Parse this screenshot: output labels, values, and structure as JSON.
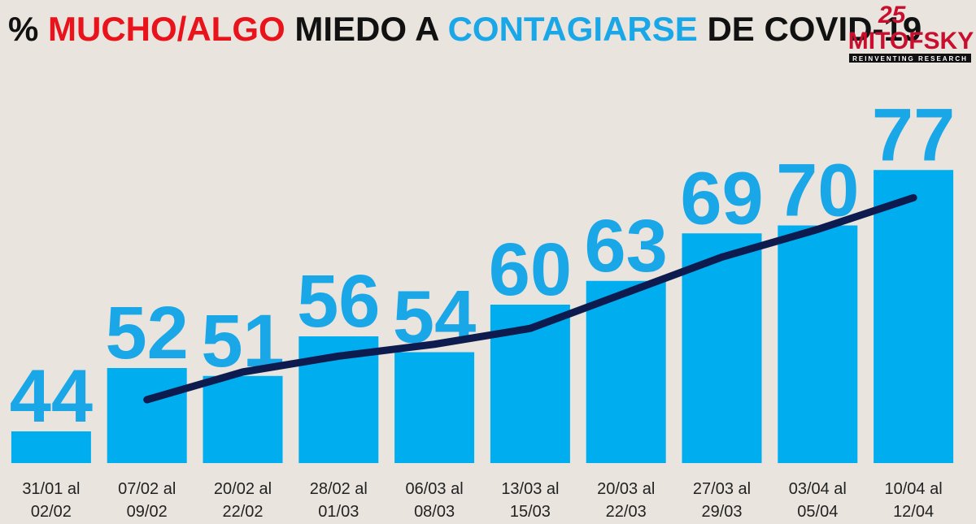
{
  "chart_data": {
    "type": "bar",
    "title": [
      {
        "text": "% ",
        "color": "#111111"
      },
      {
        "text": "MUCHO/ALGO",
        "color": "#e8131b"
      },
      {
        "text": " MIEDO A ",
        "color": "#111111"
      },
      {
        "text": "CONTAGIARSE",
        "color": "#1aa7e8"
      },
      {
        "text": " DE COVID-19",
        "color": "#111111"
      }
    ],
    "categories": [
      [
        "31/01 al",
        "02/02"
      ],
      [
        "07/02 al",
        "09/02"
      ],
      [
        "20/02 al",
        "22/02"
      ],
      [
        "28/02 al",
        "01/03"
      ],
      [
        "06/03 al",
        "08/03"
      ],
      [
        "13/03 al",
        "15/03"
      ],
      [
        "20/03 al",
        "22/03"
      ],
      [
        "27/03 al",
        "29/03"
      ],
      [
        "03/04 al",
        "05/04"
      ],
      [
        "10/04 al",
        "12/04"
      ]
    ],
    "series": [
      {
        "type": "bar",
        "color": "#00aeef",
        "label_color": "#1aa7e8",
        "values": [
          44,
          52,
          51,
          56,
          54,
          60,
          63,
          69,
          70,
          77
        ]
      },
      {
        "type": "line",
        "color": "#0d1b4f",
        "values": [
          null,
          48,
          51.5,
          53.5,
          55,
          57,
          61.5,
          66,
          69.5,
          73.5
        ]
      }
    ],
    "ylim": [
      40,
      80
    ],
    "logo": {
      "number": "25",
      "name": "MITOFSKY",
      "tagline": "REINVENTING RESEARCH"
    }
  }
}
